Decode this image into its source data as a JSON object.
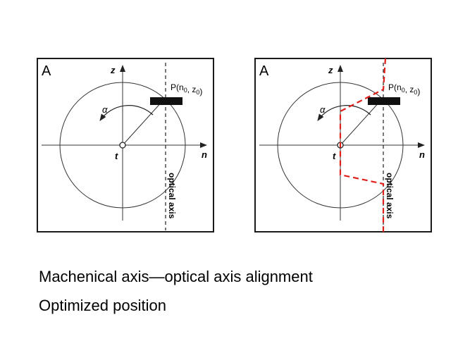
{
  "panels": [
    {
      "panel_label": "A",
      "z_axis_label": "z",
      "n_axis_label": "n",
      "angle_label": "α",
      "origin_label": "t",
      "point_label": "P(n0, z0)",
      "optical_axis_label": "optical axis",
      "red_path": false
    },
    {
      "panel_label": "A",
      "z_axis_label": "z",
      "n_axis_label": "n",
      "angle_label": "α",
      "origin_label": "t",
      "point_label": "P(n0, z0)",
      "optical_axis_label": "optical axis",
      "red_path": true
    }
  ],
  "captions": {
    "line1": "Machenical axis—optical axis alignment",
    "line2": "Optimized position"
  },
  "colors": {
    "frame": "#1a1a1a",
    "highlight": "#e0201a"
  }
}
